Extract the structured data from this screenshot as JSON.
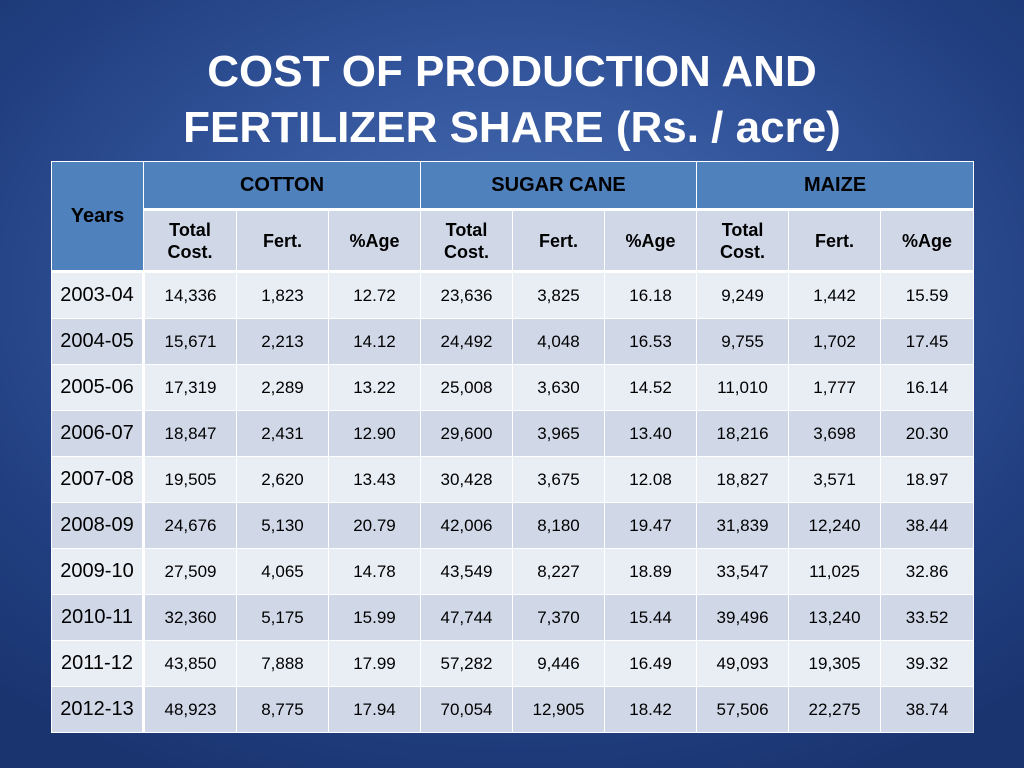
{
  "title": {
    "line1": "COST OF PRODUCTION AND",
    "line2": "FERTILIZER SHARE (Rs. / acre)"
  },
  "table": {
    "years_header": "Years",
    "crops": [
      "COTTON",
      "SUGAR CANE",
      "MAIZE"
    ],
    "subheaders": [
      "Total Cost.",
      "Fert.",
      "%Age",
      "Total Cost.",
      "Fert.",
      "%Age",
      "Total Cost.",
      "Fert.",
      "%Age"
    ],
    "rows": [
      {
        "year": "2003-04",
        "cells": [
          "14,336",
          "1,823",
          "12.72",
          "23,636",
          "3,825",
          "16.18",
          "9,249",
          "1,442",
          "15.59"
        ]
      },
      {
        "year": "2004-05",
        "cells": [
          "15,671",
          "2,213",
          "14.12",
          "24,492",
          "4,048",
          "16.53",
          "9,755",
          "1,702",
          "17.45"
        ]
      },
      {
        "year": "2005-06",
        "cells": [
          "17,319",
          "2,289",
          "13.22",
          "25,008",
          "3,630",
          "14.52",
          "11,010",
          "1,777",
          "16.14"
        ]
      },
      {
        "year": "2006-07",
        "cells": [
          "18,847",
          "2,431",
          "12.90",
          "29,600",
          "3,965",
          "13.40",
          "18,216",
          "3,698",
          "20.30"
        ]
      },
      {
        "year": "2007-08",
        "cells": [
          "19,505",
          "2,620",
          "13.43",
          "30,428",
          "3,675",
          "12.08",
          "18,827",
          "3,571",
          "18.97"
        ]
      },
      {
        "year": "2008-09",
        "cells": [
          "24,676",
          "5,130",
          "20.79",
          "42,006",
          "8,180",
          "19.47",
          "31,839",
          "12,240",
          "38.44"
        ]
      },
      {
        "year": "2009-10",
        "cells": [
          "27,509",
          "4,065",
          "14.78",
          "43,549",
          "8,227",
          "18.89",
          "33,547",
          "11,025",
          "32.86"
        ]
      },
      {
        "year": "2010-11",
        "cells": [
          "32,360",
          "5,175",
          "15.99",
          "47,744",
          "7,370",
          "15.44",
          "39,496",
          "13,240",
          "33.52"
        ]
      },
      {
        "year": "2011-12",
        "cells": [
          "43,850",
          "7,888",
          "17.99",
          "57,282",
          "9,446",
          "16.49",
          "49,093",
          "19,305",
          "39.32"
        ]
      },
      {
        "year": "2012-13",
        "cells": [
          "48,923",
          "8,775",
          "17.94",
          "70,054",
          "12,905",
          "18.42",
          "57,506",
          "22,275",
          "38.74"
        ]
      }
    ]
  },
  "colors": {
    "background": "#34569d",
    "header_fill": "#4f81bd",
    "row_light": "#e9edf4",
    "row_dark": "#d0d8e8",
    "title_text": "#ffffff"
  }
}
